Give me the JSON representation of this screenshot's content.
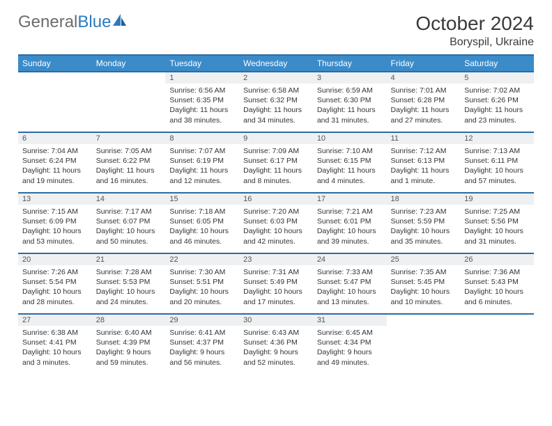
{
  "brand": {
    "part1": "General",
    "part2": "Blue"
  },
  "title": "October 2024",
  "location": "Boryspil, Ukraine",
  "colors": {
    "header_bg": "#3b8bc9",
    "header_border": "#2a6ca3",
    "daynum_bg": "#eef0f2",
    "text": "#333333",
    "brand_gray": "#6c6c6c",
    "brand_blue": "#2a7bc0"
  },
  "day_names": [
    "Sunday",
    "Monday",
    "Tuesday",
    "Wednesday",
    "Thursday",
    "Friday",
    "Saturday"
  ],
  "weeks": [
    {
      "nums": [
        "",
        "",
        "1",
        "2",
        "3",
        "4",
        "5"
      ],
      "cells": [
        null,
        null,
        {
          "sunrise": "Sunrise: 6:56 AM",
          "sunset": "Sunset: 6:35 PM",
          "daylight": "Daylight: 11 hours and 38 minutes."
        },
        {
          "sunrise": "Sunrise: 6:58 AM",
          "sunset": "Sunset: 6:32 PM",
          "daylight": "Daylight: 11 hours and 34 minutes."
        },
        {
          "sunrise": "Sunrise: 6:59 AM",
          "sunset": "Sunset: 6:30 PM",
          "daylight": "Daylight: 11 hours and 31 minutes."
        },
        {
          "sunrise": "Sunrise: 7:01 AM",
          "sunset": "Sunset: 6:28 PM",
          "daylight": "Daylight: 11 hours and 27 minutes."
        },
        {
          "sunrise": "Sunrise: 7:02 AM",
          "sunset": "Sunset: 6:26 PM",
          "daylight": "Daylight: 11 hours and 23 minutes."
        }
      ]
    },
    {
      "nums": [
        "6",
        "7",
        "8",
        "9",
        "10",
        "11",
        "12"
      ],
      "cells": [
        {
          "sunrise": "Sunrise: 7:04 AM",
          "sunset": "Sunset: 6:24 PM",
          "daylight": "Daylight: 11 hours and 19 minutes."
        },
        {
          "sunrise": "Sunrise: 7:05 AM",
          "sunset": "Sunset: 6:22 PM",
          "daylight": "Daylight: 11 hours and 16 minutes."
        },
        {
          "sunrise": "Sunrise: 7:07 AM",
          "sunset": "Sunset: 6:19 PM",
          "daylight": "Daylight: 11 hours and 12 minutes."
        },
        {
          "sunrise": "Sunrise: 7:09 AM",
          "sunset": "Sunset: 6:17 PM",
          "daylight": "Daylight: 11 hours and 8 minutes."
        },
        {
          "sunrise": "Sunrise: 7:10 AM",
          "sunset": "Sunset: 6:15 PM",
          "daylight": "Daylight: 11 hours and 4 minutes."
        },
        {
          "sunrise": "Sunrise: 7:12 AM",
          "sunset": "Sunset: 6:13 PM",
          "daylight": "Daylight: 11 hours and 1 minute."
        },
        {
          "sunrise": "Sunrise: 7:13 AM",
          "sunset": "Sunset: 6:11 PM",
          "daylight": "Daylight: 10 hours and 57 minutes."
        }
      ]
    },
    {
      "nums": [
        "13",
        "14",
        "15",
        "16",
        "17",
        "18",
        "19"
      ],
      "cells": [
        {
          "sunrise": "Sunrise: 7:15 AM",
          "sunset": "Sunset: 6:09 PM",
          "daylight": "Daylight: 10 hours and 53 minutes."
        },
        {
          "sunrise": "Sunrise: 7:17 AM",
          "sunset": "Sunset: 6:07 PM",
          "daylight": "Daylight: 10 hours and 50 minutes."
        },
        {
          "sunrise": "Sunrise: 7:18 AM",
          "sunset": "Sunset: 6:05 PM",
          "daylight": "Daylight: 10 hours and 46 minutes."
        },
        {
          "sunrise": "Sunrise: 7:20 AM",
          "sunset": "Sunset: 6:03 PM",
          "daylight": "Daylight: 10 hours and 42 minutes."
        },
        {
          "sunrise": "Sunrise: 7:21 AM",
          "sunset": "Sunset: 6:01 PM",
          "daylight": "Daylight: 10 hours and 39 minutes."
        },
        {
          "sunrise": "Sunrise: 7:23 AM",
          "sunset": "Sunset: 5:59 PM",
          "daylight": "Daylight: 10 hours and 35 minutes."
        },
        {
          "sunrise": "Sunrise: 7:25 AM",
          "sunset": "Sunset: 5:56 PM",
          "daylight": "Daylight: 10 hours and 31 minutes."
        }
      ]
    },
    {
      "nums": [
        "20",
        "21",
        "22",
        "23",
        "24",
        "25",
        "26"
      ],
      "cells": [
        {
          "sunrise": "Sunrise: 7:26 AM",
          "sunset": "Sunset: 5:54 PM",
          "daylight": "Daylight: 10 hours and 28 minutes."
        },
        {
          "sunrise": "Sunrise: 7:28 AM",
          "sunset": "Sunset: 5:53 PM",
          "daylight": "Daylight: 10 hours and 24 minutes."
        },
        {
          "sunrise": "Sunrise: 7:30 AM",
          "sunset": "Sunset: 5:51 PM",
          "daylight": "Daylight: 10 hours and 20 minutes."
        },
        {
          "sunrise": "Sunrise: 7:31 AM",
          "sunset": "Sunset: 5:49 PM",
          "daylight": "Daylight: 10 hours and 17 minutes."
        },
        {
          "sunrise": "Sunrise: 7:33 AM",
          "sunset": "Sunset: 5:47 PM",
          "daylight": "Daylight: 10 hours and 13 minutes."
        },
        {
          "sunrise": "Sunrise: 7:35 AM",
          "sunset": "Sunset: 5:45 PM",
          "daylight": "Daylight: 10 hours and 10 minutes."
        },
        {
          "sunrise": "Sunrise: 7:36 AM",
          "sunset": "Sunset: 5:43 PM",
          "daylight": "Daylight: 10 hours and 6 minutes."
        }
      ]
    },
    {
      "nums": [
        "27",
        "28",
        "29",
        "30",
        "31",
        "",
        ""
      ],
      "cells": [
        {
          "sunrise": "Sunrise: 6:38 AM",
          "sunset": "Sunset: 4:41 PM",
          "daylight": "Daylight: 10 hours and 3 minutes."
        },
        {
          "sunrise": "Sunrise: 6:40 AM",
          "sunset": "Sunset: 4:39 PM",
          "daylight": "Daylight: 9 hours and 59 minutes."
        },
        {
          "sunrise": "Sunrise: 6:41 AM",
          "sunset": "Sunset: 4:37 PM",
          "daylight": "Daylight: 9 hours and 56 minutes."
        },
        {
          "sunrise": "Sunrise: 6:43 AM",
          "sunset": "Sunset: 4:36 PM",
          "daylight": "Daylight: 9 hours and 52 minutes."
        },
        {
          "sunrise": "Sunrise: 6:45 AM",
          "sunset": "Sunset: 4:34 PM",
          "daylight": "Daylight: 9 hours and 49 minutes."
        },
        null,
        null
      ]
    }
  ]
}
